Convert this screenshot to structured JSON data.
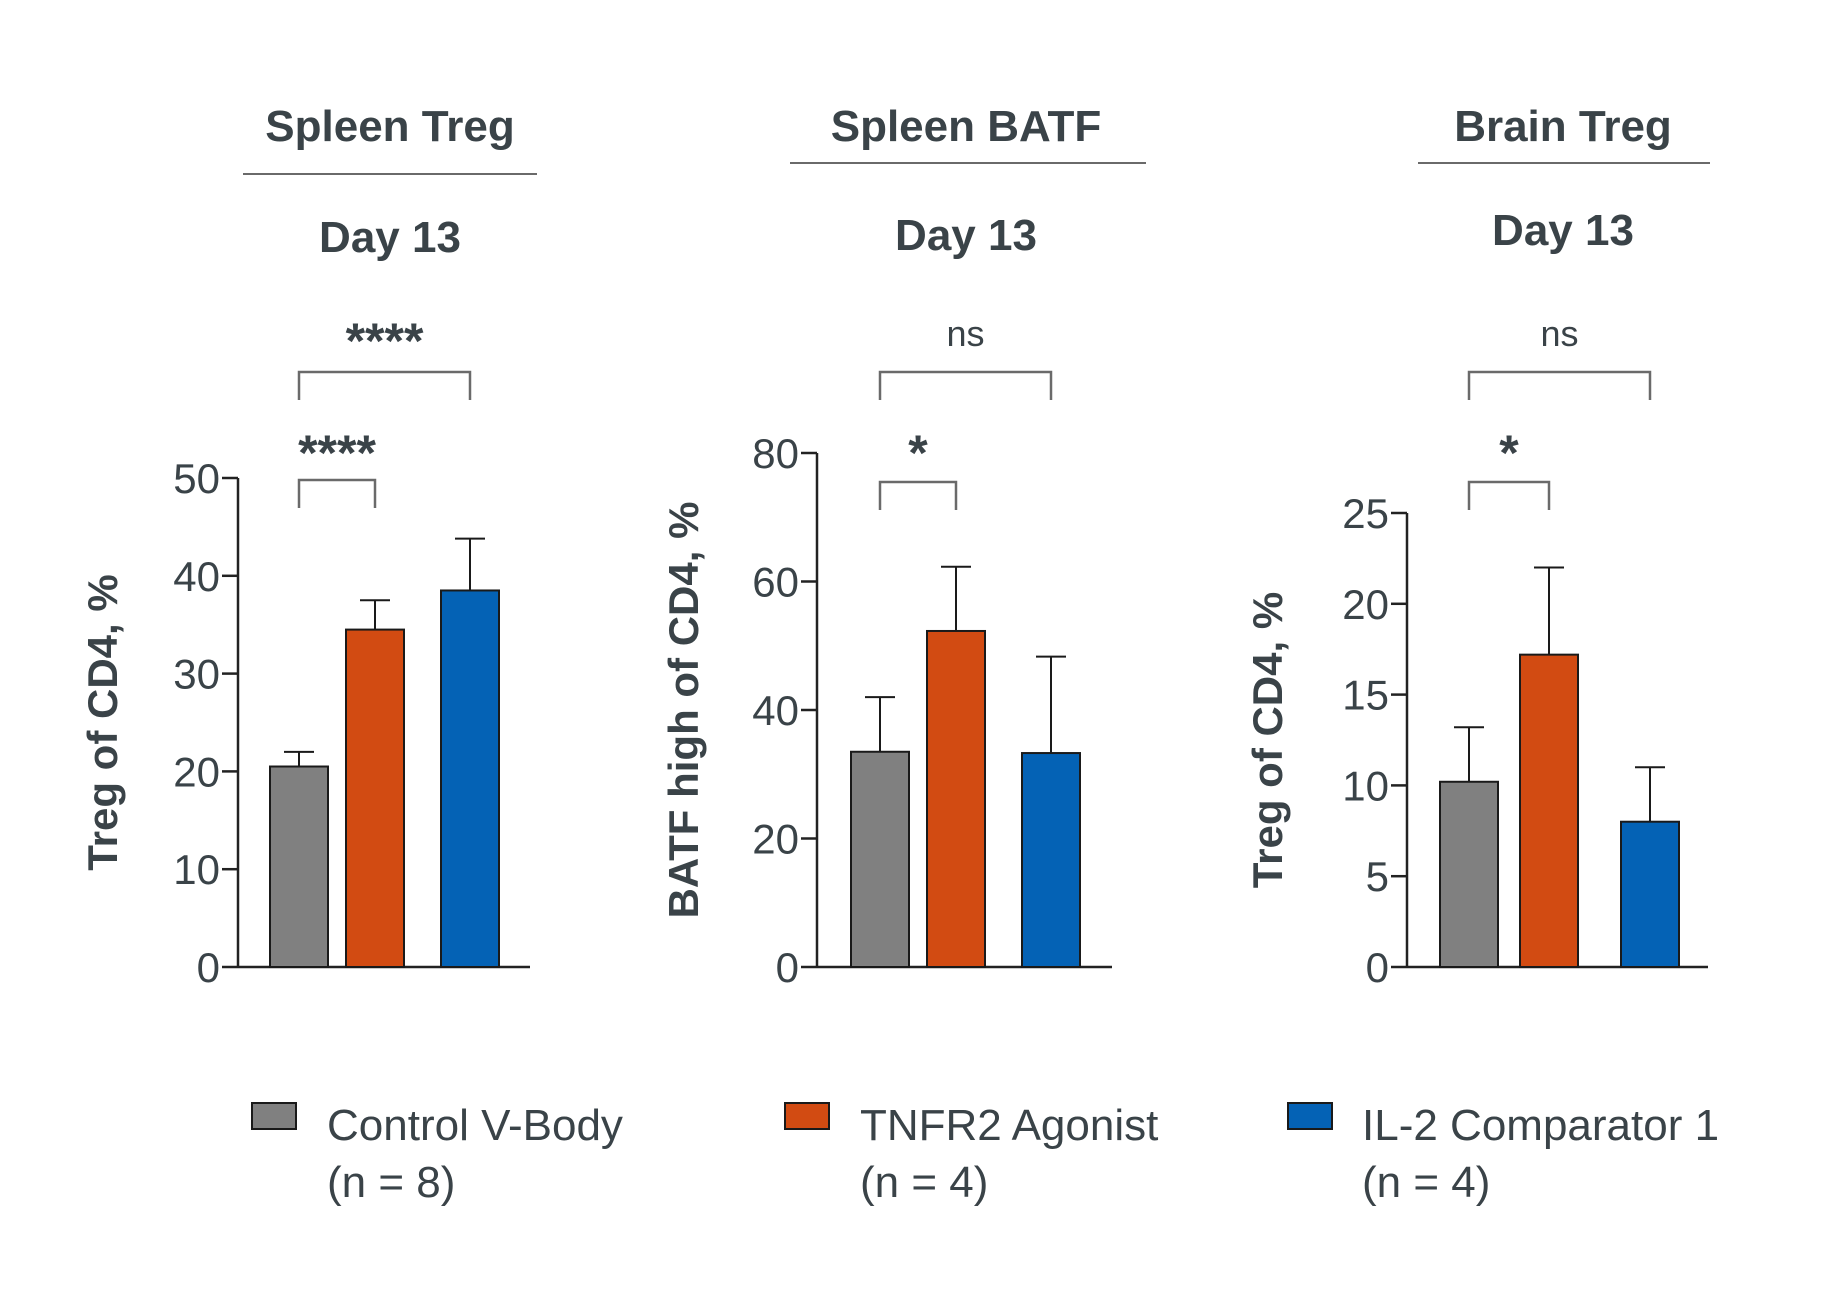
{
  "colors": {
    "text": "#3a4348",
    "axis": "#222222",
    "bracket": "#6a6a6a",
    "control": "#808080",
    "agonist": "#d24b12",
    "comparator": "#0462b5"
  },
  "legend": [
    {
      "label": "Control V-Body",
      "n": "(n = 8)",
      "color": "#808080"
    },
    {
      "label": "TNFR2 Agonist",
      "n": "(n = 4)",
      "color": "#d24b12"
    },
    {
      "label": "IL-2 Comparator 1",
      "n": "(n = 4)",
      "color": "#0462b5"
    }
  ],
  "chart_data": [
    {
      "type": "bar",
      "title": "Spleen Treg",
      "subtitle": "Day 13",
      "ylabel": "Treg of CD4, %",
      "ylim": [
        0,
        50
      ],
      "yticks": [
        0,
        10,
        20,
        30,
        40,
        50
      ],
      "categories": [
        "Control V-Body",
        "TNFR2 Agonist",
        "IL-2 Comparator 1"
      ],
      "values": [
        20.5,
        34.5,
        38.5
      ],
      "errors": [
        1.5,
        3.0,
        5.3
      ],
      "significance": [
        {
          "from": 0,
          "to": 1,
          "label": "****"
        },
        {
          "from": 0,
          "to": 2,
          "label": "****"
        }
      ]
    },
    {
      "type": "bar",
      "title": "Spleen BATF",
      "subtitle": "Day 13",
      "ylabel": "BATF high of CD4, %",
      "ylim": [
        0,
        80
      ],
      "yticks": [
        0,
        20,
        40,
        60,
        80
      ],
      "categories": [
        "Control V-Body",
        "TNFR2 Agonist",
        "IL-2 Comparator 1"
      ],
      "values": [
        33.5,
        52.3,
        33.3
      ],
      "errors": [
        8.5,
        10.0,
        15.0
      ],
      "significance": [
        {
          "from": 0,
          "to": 1,
          "label": "*"
        },
        {
          "from": 0,
          "to": 2,
          "label": "ns"
        }
      ]
    },
    {
      "type": "bar",
      "title": "Brain Treg",
      "subtitle": "Day 13",
      "ylabel": "Treg of CD4, %",
      "ylim": [
        0,
        25
      ],
      "yticks": [
        0,
        5,
        10,
        15,
        20,
        25
      ],
      "categories": [
        "Control V-Body",
        "TNFR2 Agonist",
        "IL-2 Comparator 1"
      ],
      "values": [
        10.2,
        17.2,
        8.0
      ],
      "errors": [
        3.0,
        4.8,
        3.0
      ],
      "significance": [
        {
          "from": 0,
          "to": 1,
          "label": "*"
        },
        {
          "from": 0,
          "to": 2,
          "label": "ns"
        }
      ]
    }
  ]
}
